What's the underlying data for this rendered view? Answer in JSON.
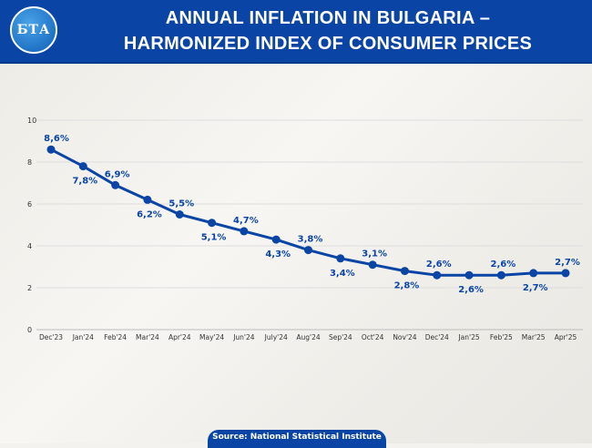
{
  "header": {
    "logo_text": "БТА",
    "title_line1": "ANNUAL INFLATION IN BULGARIA –",
    "title_line2": "HARMONIZED INDEX OF CONSUMER PRICES"
  },
  "source": "Source: National Statistical Institute",
  "chart_data": {
    "type": "line",
    "title": "ANNUAL INFLATION IN BULGARIA – HARMONIZED INDEX OF CONSUMER PRICES",
    "xlabel": "",
    "ylabel": "",
    "ylim": [
      0,
      10
    ],
    "yticks": [
      0,
      2,
      4,
      6,
      8,
      10
    ],
    "grid": true,
    "categories": [
      "Dec'23",
      "Jan'24",
      "Feb'24",
      "Mar'24",
      "Apr'24",
      "May'24",
      "Jun'24",
      "July'24",
      "Aug'24",
      "Sep'24",
      "Oct'24",
      "Nov'24",
      "Dec'24",
      "Jan'25",
      "Feb'25",
      "Mar'25",
      "Apr'25"
    ],
    "values": [
      8.6,
      7.8,
      6.9,
      6.2,
      5.5,
      5.1,
      4.7,
      4.3,
      3.8,
      3.4,
      3.1,
      2.8,
      2.6,
      2.6,
      2.6,
      2.7,
      2.7
    ],
    "labels": [
      "8,6%",
      "7,8%",
      "6,9%",
      "6,2%",
      "5,5%",
      "5,1%",
      "4,7%",
      "4,3%",
      "3,8%",
      "3,4%",
      "3,1%",
      "2,8%",
      "2,6%",
      "2,6%",
      "2,6%",
      "2,7%",
      "2,7%"
    ],
    "color": "#0a45a6"
  }
}
